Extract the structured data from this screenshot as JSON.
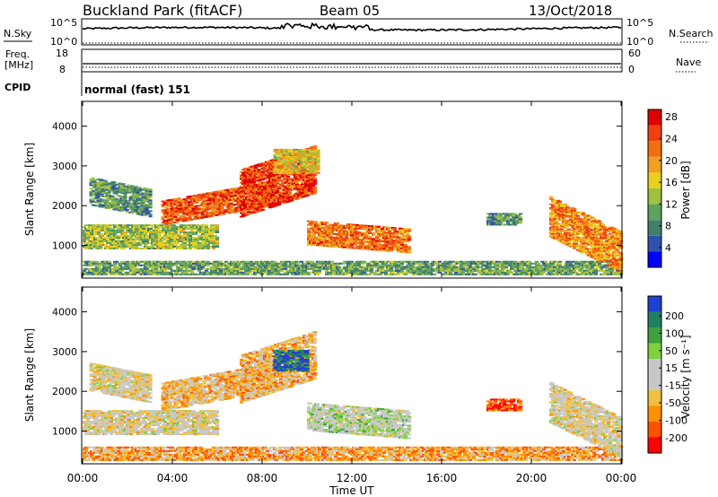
{
  "header": {
    "station": "Buckland Park (fitACF)",
    "beam": "Beam 05",
    "date": "13/Oct/2018"
  },
  "status_panels": {
    "nsky_label": "N.Sky",
    "nsky_ticks": [
      "10^5",
      "10^0"
    ],
    "nsearch_label": "N.Search",
    "nsearch_ticks": [
      "10^5",
      "10^0"
    ],
    "freq_label_1": "Freq.",
    "freq_label_2": "[MHz]",
    "freq_ticks": [
      "18",
      "8"
    ],
    "nave_label": "Nave",
    "nave_ticks": [
      "60",
      "0"
    ],
    "cpid_label": "CPID",
    "cpid_value": "normal (fast) 151"
  },
  "colors": {
    "power": [
      "#0000ff",
      "#3050b0",
      "#40806a",
      "#60a060",
      "#a0c040",
      "#e8d020",
      "#f0a020",
      "#f07010",
      "#f04010",
      "#e00000"
    ],
    "velocity": [
      "#ff0000",
      "#ff5000",
      "#ff9000",
      "#f0c040",
      "#c8c8c8",
      "#c8c8c8",
      "#80d040",
      "#40a040",
      "#208060",
      "#2040d0"
    ]
  },
  "chart_data": [
    {
      "type": "heatmap",
      "quantity": "power",
      "ylabel": "Slant Range [km]",
      "yticks": [
        "1000",
        "2000",
        "3000",
        "4000"
      ],
      "ylim": [
        200,
        4600
      ],
      "xlim": [
        0,
        24
      ],
      "colorbar_label": "Power [dB]",
      "colorbar_ticks": [
        "4",
        "8",
        "12",
        "16",
        "20",
        "24",
        "28"
      ],
      "regions": [
        {
          "t0": 0.0,
          "t1": 6.0,
          "r0": 900,
          "r1": 1500,
          "tilt": 0,
          "level": 0.45
        },
        {
          "t0": 0.3,
          "t1": 3.0,
          "r0": 2000,
          "r1": 2700,
          "tilt": -300,
          "level": 0.3
        },
        {
          "t0": 3.5,
          "t1": 8.5,
          "r0": 1500,
          "r1": 2100,
          "tilt": 500,
          "level": 0.8
        },
        {
          "t0": 7.0,
          "t1": 10.3,
          "r0": 1700,
          "r1": 2900,
          "tilt": 600,
          "level": 0.85
        },
        {
          "t0": 10.0,
          "t1": 14.5,
          "r0": 1000,
          "r1": 1600,
          "tilt": -200,
          "level": 0.75
        },
        {
          "t0": 8.5,
          "t1": 10.5,
          "r0": 2800,
          "r1": 3400,
          "tilt": 0,
          "level": 0.55
        },
        {
          "t0": 0.0,
          "t1": 24.0,
          "r0": 250,
          "r1": 600,
          "tilt": 0,
          "level": 0.35
        },
        {
          "t0": 20.8,
          "t1": 24.0,
          "r0": 1200,
          "r1": 2200,
          "tilt": -900,
          "level": 0.7
        },
        {
          "t0": 18.0,
          "t1": 19.5,
          "r0": 1500,
          "r1": 1800,
          "tilt": 0,
          "level": 0.3
        }
      ]
    },
    {
      "type": "heatmap",
      "quantity": "velocity",
      "ylabel": "Slant Range [km]",
      "yticks": [
        "1000",
        "2000",
        "3000",
        "4000"
      ],
      "ylim": [
        200,
        4600
      ],
      "xlim": [
        0,
        24
      ],
      "xlabel": "Time UT",
      "xticks": [
        "00:00",
        "04:00",
        "08:00",
        "12:00",
        "16:00",
        "20:00",
        "00:00"
      ],
      "colorbar_label": "Velocity [m s⁻¹]",
      "colorbar_ticks": [
        "200",
        "100",
        "50",
        "15",
        "-15",
        "-50",
        "-100",
        "-200"
      ],
      "regions": [
        {
          "t0": 0.0,
          "t1": 6.0,
          "r0": 900,
          "r1": 1500,
          "tilt": 0,
          "level": 0.45
        },
        {
          "t0": 0.3,
          "t1": 3.0,
          "r0": 2000,
          "r1": 2700,
          "tilt": -300,
          "level": 0.45
        },
        {
          "t0": 3.5,
          "t1": 8.5,
          "r0": 1500,
          "r1": 2200,
          "tilt": 500,
          "level": 0.35
        },
        {
          "t0": 7.0,
          "t1": 10.3,
          "r0": 1700,
          "r1": 2900,
          "tilt": 600,
          "level": 0.33
        },
        {
          "t0": 10.0,
          "t1": 14.5,
          "r0": 1000,
          "r1": 1700,
          "tilt": -200,
          "level": 0.55
        },
        {
          "t0": 8.5,
          "t1": 10.0,
          "r0": 2500,
          "r1": 3000,
          "tilt": 0,
          "level": 0.9
        },
        {
          "t0": 0.0,
          "t1": 24.0,
          "r0": 250,
          "r1": 600,
          "tilt": 0,
          "level": 0.3
        },
        {
          "t0": 20.8,
          "t1": 24.0,
          "r0": 1200,
          "r1": 2200,
          "tilt": -900,
          "level": 0.45
        },
        {
          "t0": 18.0,
          "t1": 19.5,
          "r0": 1500,
          "r1": 1800,
          "tilt": 0,
          "level": 0.15
        }
      ]
    }
  ]
}
